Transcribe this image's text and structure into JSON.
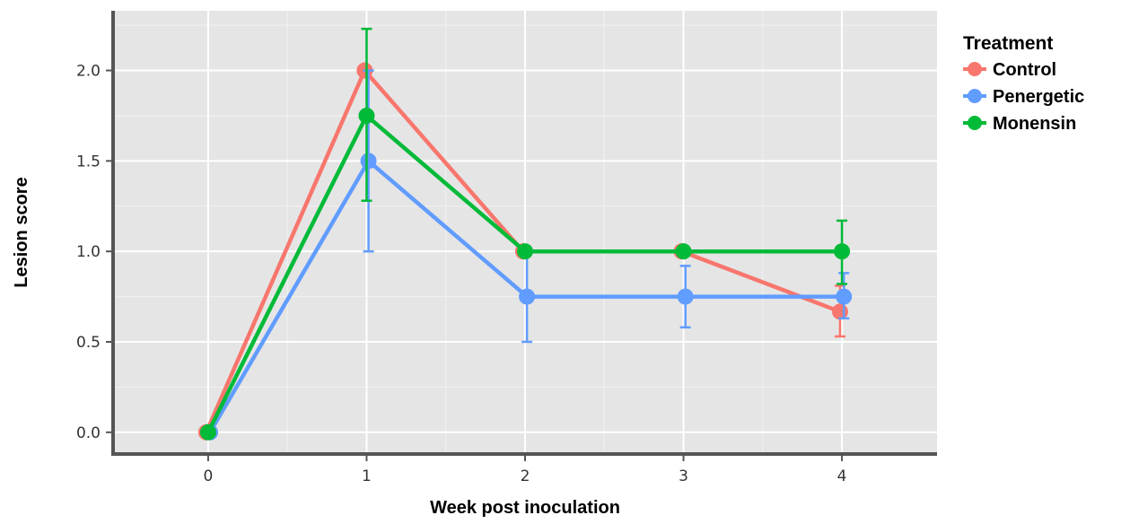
{
  "chart_data": {
    "type": "line",
    "title": "",
    "xlabel": "Week post inoculation",
    "ylabel": "Lesion score",
    "x": [
      0,
      1,
      2,
      3,
      4
    ],
    "x_ticks": [
      "0",
      "1",
      "2",
      "3",
      "4"
    ],
    "y_ticks": [
      "0.0",
      "0.5",
      "1.0",
      "1.5",
      "2.0"
    ],
    "xlim": [
      -0.6,
      4.6
    ],
    "ylim": [
      -0.12,
      2.33
    ],
    "grid": true,
    "legend_title": "Treatment",
    "legend_position": "right",
    "series": [
      {
        "name": "Control",
        "color": "#F8766D",
        "values": [
          0,
          2.0,
          1.0,
          1.0,
          0.667
        ],
        "error_low": [
          null,
          null,
          null,
          null,
          0.53
        ],
        "error_high": [
          null,
          null,
          null,
          null,
          0.81
        ]
      },
      {
        "name": "Penergetic",
        "color": "#619CFF",
        "values": [
          0,
          1.5,
          0.75,
          0.75,
          0.75
        ],
        "error_low": [
          null,
          1.0,
          0.5,
          0.58,
          0.63
        ],
        "error_high": [
          null,
          2.0,
          1.0,
          0.92,
          0.88
        ]
      },
      {
        "name": "Monensin",
        "color": "#00BA38",
        "values": [
          0,
          1.75,
          1.0,
          1.0,
          1.0
        ],
        "error_low": [
          null,
          1.28,
          null,
          null,
          0.82
        ],
        "error_high": [
          null,
          2.23,
          null,
          null,
          1.17
        ]
      }
    ]
  }
}
